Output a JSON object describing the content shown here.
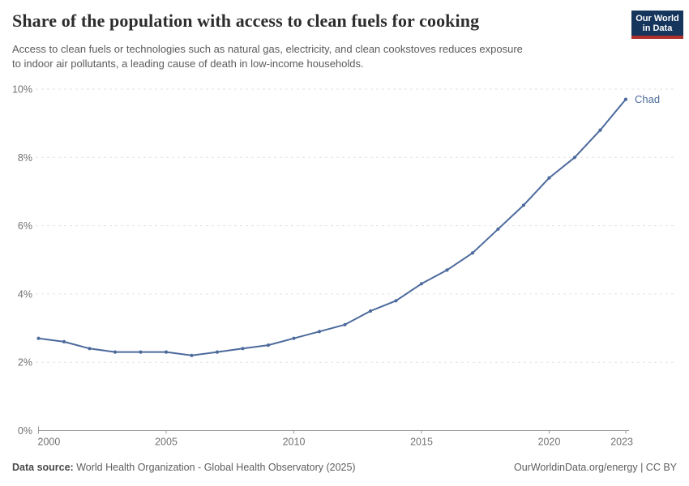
{
  "header": {
    "title": "Share of the population with access to clean fuels for cooking",
    "subtitle": "Access to clean fuels or technologies such as natural gas, electricity, and clean cookstoves reduces exposure\nto indoor air pollutants, a leading cause of death in low-income households.",
    "logo": {
      "line1": "Our World",
      "line2": "in Data",
      "bg": "#16355c",
      "accent": "#b0302c"
    }
  },
  "chart_data": {
    "type": "line",
    "title": "Share of the population with access to clean fuels for cooking",
    "xlabel": "",
    "ylabel": "",
    "xlim": [
      2000,
      2023
    ],
    "ylim": [
      0,
      10
    ],
    "xticks": [
      2000,
      2005,
      2010,
      2015,
      2020,
      2023
    ],
    "yticks": [
      0,
      2,
      4,
      6,
      8,
      10
    ],
    "ytick_suffix": "%",
    "grid": "horizontal-dashed",
    "legend_position": "end-of-line-label",
    "series": [
      {
        "name": "Chad",
        "color": "#4c6a9c",
        "x": [
          2000,
          2001,
          2002,
          2003,
          2004,
          2005,
          2006,
          2007,
          2008,
          2009,
          2010,
          2011,
          2012,
          2013,
          2014,
          2015,
          2016,
          2017,
          2018,
          2019,
          2020,
          2021,
          2022,
          2023
        ],
        "values": [
          2.7,
          2.6,
          2.4,
          2.3,
          2.3,
          2.3,
          2.2,
          2.3,
          2.4,
          2.5,
          2.7,
          2.9,
          3.1,
          3.5,
          3.8,
          4.3,
          4.7,
          5.2,
          5.9,
          6.6,
          7.4,
          8.0,
          8.8,
          9.7
        ]
      }
    ],
    "colors": {
      "grid": "#e2e2e2",
      "axis": "#9e9e9e",
      "tick_label": "#727272"
    }
  },
  "footer": {
    "source_label": "Data source:",
    "source_text": "World Health Organization - Global Health Observatory (2025)",
    "right_text": "OurWorldinData.org/energy | CC BY"
  }
}
